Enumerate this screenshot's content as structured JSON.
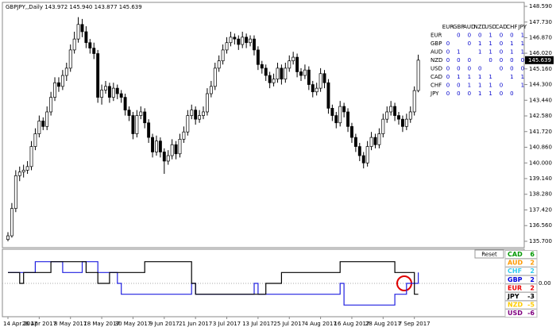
{
  "chart_data": [
    {
      "type": "candlestick",
      "title": "GBPJPY,,Daily 143.972 145.940 143.877 145.639",
      "categories": [
        "14 Apr 2017",
        null,
        null,
        null,
        null,
        null,
        null,
        null,
        "26 Apr 2017",
        null,
        null,
        null,
        null,
        null,
        null,
        null,
        "8 May 2017",
        null,
        null,
        null,
        null,
        null,
        null,
        null,
        "18 May 2017",
        null,
        null,
        null,
        null,
        null,
        null,
        null,
        "30 May 2017",
        null,
        null,
        null,
        null,
        null,
        null,
        null,
        "9 Jun 2017",
        null,
        null,
        null,
        null,
        null,
        null,
        null,
        "21 Jun 2017",
        null,
        null,
        null,
        null,
        null,
        null,
        null,
        "3 Jul 2017",
        null,
        null,
        null,
        null,
        null,
        null,
        null,
        "13 Jul 2017",
        null,
        null,
        null,
        null,
        null,
        null,
        null,
        "25 Jul 2017",
        null,
        null,
        null,
        null,
        null,
        null,
        null,
        "4 Aug 2017",
        null,
        null,
        null,
        null,
        null,
        null,
        null,
        "16 Aug 2017",
        null,
        null,
        null,
        null,
        null,
        null,
        null,
        "28 Aug 2017",
        null,
        null,
        null,
        null,
        null,
        null,
        null,
        "7 Sep 2017",
        null
      ],
      "candles": [
        [
          135.8,
          136.2,
          135.7,
          136.0
        ],
        [
          136.0,
          137.8,
          135.9,
          137.5
        ],
        [
          137.5,
          139.6,
          137.3,
          139.3
        ],
        [
          139.3,
          139.8,
          139.0,
          139.5
        ],
        [
          139.5,
          139.9,
          139.2,
          139.6
        ],
        [
          139.6,
          140.1,
          139.4,
          139.8
        ],
        [
          139.8,
          141.2,
          139.6,
          140.9
        ],
        [
          140.9,
          141.9,
          140.7,
          141.6
        ],
        [
          141.6,
          142.6,
          141.4,
          142.3
        ],
        [
          142.3,
          142.5,
          141.8,
          142.0
        ],
        [
          142.0,
          143.1,
          141.8,
          142.8
        ],
        [
          142.8,
          143.9,
          142.6,
          143.6
        ],
        [
          143.6,
          144.7,
          143.4,
          144.4
        ],
        [
          144.4,
          144.7,
          143.9,
          144.2
        ],
        [
          144.2,
          145.1,
          144.0,
          144.8
        ],
        [
          144.8,
          145.5,
          144.5,
          145.2
        ],
        [
          145.2,
          146.5,
          145.0,
          146.2
        ],
        [
          146.2,
          147.2,
          146.0,
          146.8
        ],
        [
          146.8,
          148.0,
          146.6,
          147.6
        ],
        [
          147.6,
          147.9,
          146.9,
          147.2
        ],
        [
          147.2,
          147.5,
          146.3,
          146.6
        ],
        [
          146.6,
          146.8,
          146.0,
          146.3
        ],
        [
          146.3,
          146.6,
          145.7,
          146.0
        ],
        [
          146.0,
          146.2,
          143.3,
          143.6
        ],
        [
          143.6,
          144.3,
          143.2,
          144.0
        ],
        [
          144.0,
          144.5,
          143.8,
          144.2
        ],
        [
          144.2,
          144.4,
          143.3,
          143.6
        ],
        [
          143.6,
          144.4,
          143.4,
          144.1
        ],
        [
          144.1,
          144.3,
          143.5,
          143.8
        ],
        [
          143.8,
          144.0,
          143.3,
          143.6
        ],
        [
          143.6,
          143.8,
          142.6,
          142.9
        ],
        [
          142.9,
          143.1,
          142.3,
          142.6
        ],
        [
          142.6,
          142.8,
          141.3,
          141.6
        ],
        [
          141.6,
          142.9,
          141.4,
          142.6
        ],
        [
          142.6,
          143.1,
          142.4,
          142.8
        ],
        [
          142.8,
          143.0,
          141.9,
          142.2
        ],
        [
          142.2,
          142.4,
          141.1,
          141.4
        ],
        [
          141.4,
          141.6,
          140.3,
          140.6
        ],
        [
          140.6,
          141.5,
          140.4,
          141.2
        ],
        [
          141.2,
          141.4,
          140.3,
          140.6
        ],
        [
          140.6,
          140.8,
          139.4,
          140.1
        ],
        [
          140.1,
          140.7,
          139.9,
          140.4
        ],
        [
          140.4,
          141.3,
          140.2,
          141.0
        ],
        [
          141.0,
          141.2,
          140.2,
          140.5
        ],
        [
          140.5,
          141.6,
          140.3,
          141.3
        ],
        [
          141.3,
          142.0,
          141.1,
          141.7
        ],
        [
          141.7,
          142.9,
          141.5,
          142.6
        ],
        [
          142.6,
          143.2,
          142.4,
          142.9
        ],
        [
          142.9,
          143.1,
          142.1,
          142.4
        ],
        [
          142.4,
          142.9,
          142.2,
          142.6
        ],
        [
          142.6,
          143.1,
          142.4,
          142.8
        ],
        [
          142.8,
          144.1,
          142.6,
          143.8
        ],
        [
          143.8,
          144.5,
          143.6,
          144.2
        ],
        [
          144.2,
          145.5,
          144.0,
          145.2
        ],
        [
          145.2,
          145.9,
          145.0,
          145.6
        ],
        [
          145.6,
          146.5,
          145.4,
          146.2
        ],
        [
          146.2,
          146.9,
          146.0,
          146.6
        ],
        [
          146.6,
          147.2,
          146.4,
          146.9
        ],
        [
          146.9,
          147.1,
          146.5,
          146.8
        ],
        [
          146.8,
          147.0,
          146.2,
          146.5
        ],
        [
          146.5,
          147.2,
          146.3,
          146.9
        ],
        [
          146.9,
          147.1,
          146.3,
          146.6
        ],
        [
          146.6,
          147.0,
          146.4,
          146.8
        ],
        [
          146.8,
          147.0,
          145.9,
          146.2
        ],
        [
          146.2,
          146.4,
          145.1,
          145.4
        ],
        [
          145.4,
          145.6,
          144.9,
          145.2
        ],
        [
          145.2,
          145.4,
          144.5,
          144.8
        ],
        [
          144.8,
          145.0,
          144.1,
          144.4
        ],
        [
          144.4,
          144.9,
          144.2,
          144.6
        ],
        [
          144.6,
          145.5,
          144.4,
          145.2
        ],
        [
          145.2,
          145.4,
          144.3,
          144.6
        ],
        [
          144.6,
          145.5,
          144.4,
          145.2
        ],
        [
          145.2,
          145.9,
          145.0,
          145.6
        ],
        [
          145.6,
          146.1,
          145.4,
          145.8
        ],
        [
          145.8,
          146.0,
          144.7,
          145.0
        ],
        [
          145.0,
          145.2,
          144.5,
          144.8
        ],
        [
          144.8,
          145.4,
          144.6,
          145.1
        ],
        [
          145.1,
          145.3,
          144.0,
          144.3
        ],
        [
          144.3,
          144.5,
          143.6,
          143.9
        ],
        [
          143.9,
          144.4,
          143.7,
          144.1
        ],
        [
          144.1,
          145.2,
          143.9,
          144.9
        ],
        [
          144.9,
          145.1,
          144.1,
          144.4
        ],
        [
          144.4,
          144.6,
          142.7,
          143.0
        ],
        [
          143.0,
          143.2,
          142.3,
          142.6
        ],
        [
          142.6,
          142.8,
          141.9,
          142.2
        ],
        [
          142.2,
          143.4,
          142.0,
          143.1
        ],
        [
          143.1,
          143.3,
          142.5,
          142.8
        ],
        [
          142.8,
          143.0,
          141.7,
          142.0
        ],
        [
          142.0,
          142.2,
          141.1,
          141.4
        ],
        [
          141.4,
          141.6,
          140.6,
          140.9
        ],
        [
          140.9,
          141.1,
          140.1,
          140.4
        ],
        [
          140.4,
          140.6,
          139.7,
          140.0
        ],
        [
          140.0,
          141.2,
          139.8,
          140.9
        ],
        [
          140.9,
          141.7,
          140.7,
          141.4
        ],
        [
          141.4,
          141.6,
          140.8,
          141.0
        ],
        [
          141.0,
          141.9,
          140.8,
          141.6
        ],
        [
          141.6,
          142.7,
          141.4,
          142.4
        ],
        [
          142.4,
          143.1,
          142.2,
          142.8
        ],
        [
          142.8,
          143.4,
          142.6,
          143.1
        ],
        [
          143.1,
          143.3,
          142.3,
          142.6
        ],
        [
          142.6,
          142.8,
          142.1,
          142.4
        ],
        [
          142.4,
          142.6,
          141.7,
          142.0
        ],
        [
          142.0,
          142.7,
          141.8,
          142.4
        ],
        [
          142.4,
          143.1,
          142.2,
          142.8
        ],
        [
          142.8,
          144.2,
          142.6,
          143.97
        ],
        [
          143.972,
          145.94,
          143.877,
          145.639
        ]
      ],
      "up_color": "#ffffff",
      "down_color": "#000000",
      "ylim": [
        135.35,
        148.81
      ],
      "yticks": [
        {
          "value": 148.59,
          "label": "148.590"
        },
        {
          "value": 147.73,
          "label": "147.730"
        },
        {
          "value": 146.87,
          "label": "146.870"
        },
        {
          "value": 146.02,
          "label": "146.020"
        },
        {
          "value": 145.16,
          "label": "145.160"
        },
        {
          "value": 144.3,
          "label": "144.300"
        },
        {
          "value": 143.44,
          "label": "143.440"
        },
        {
          "value": 142.58,
          "label": "142.580"
        },
        {
          "value": 141.72,
          "label": "141.720"
        },
        {
          "value": 140.86,
          "label": "140.860"
        },
        {
          "value": 140.0,
          "label": "140.000"
        },
        {
          "value": 139.14,
          "label": "139.140"
        },
        {
          "value": 138.28,
          "label": "138.280"
        },
        {
          "value": 137.42,
          "label": "137.420"
        },
        {
          "value": 136.56,
          "label": "136.560"
        },
        {
          "value": 135.7,
          "label": "135.700"
        }
      ],
      "matrix": {
        "columns": [
          "EUR",
          "GBP",
          "AUD",
          "NZD",
          "USD",
          "CAD",
          "CHF",
          "JPY"
        ],
        "rows": [
          {
            "label": "EUR",
            "cells": [
              null,
              0,
              0,
              0,
              1,
              0,
              0,
              1
            ]
          },
          {
            "label": "GBP",
            "cells": [
              0,
              null,
              0,
              1,
              1,
              0,
              1,
              1
            ]
          },
          {
            "label": "AUD",
            "cells": [
              0,
              1,
              null,
              1,
              1,
              0,
              1,
              1
            ]
          },
          {
            "label": "NZD",
            "cells": [
              0,
              0,
              0,
              null,
              0,
              0,
              0,
              0
            ]
          },
          {
            "label": "USD",
            "cells": [
              0,
              0,
              0,
              0,
              null,
              0,
              0,
              0
            ]
          },
          {
            "label": "CAD",
            "cells": [
              0,
              1,
              1,
              1,
              1,
              null,
              1,
              1
            ]
          },
          {
            "label": "CHF",
            "cells": [
              0,
              0,
              1,
              1,
              1,
              0,
              null,
              1
            ]
          },
          {
            "label": "JPY",
            "cells": [
              0,
              0,
              0,
              1,
              1,
              0,
              0,
              null
            ]
          }
        ]
      }
    },
    {
      "type": "line",
      "series": [
        {
          "color": "#2020e0",
          "values": [
            1,
            1,
            1,
            1,
            1,
            1,
            1,
            2,
            2,
            2,
            2,
            2,
            2,
            2,
            1,
            1,
            1,
            1,
            1,
            2,
            2,
            2,
            2,
            1,
            1,
            1,
            1,
            1,
            0,
            -1,
            -1,
            -1,
            -1,
            -1,
            -1,
            -1,
            -1,
            -1,
            -1,
            -1,
            -1,
            -1,
            -1,
            -1,
            -1,
            -1,
            -1,
            0,
            -1,
            -1,
            -1,
            -1,
            -1,
            -1,
            -1,
            -1,
            -1,
            -1,
            -1,
            -1,
            -1,
            -1,
            -1,
            0,
            -1,
            -1,
            -1,
            -1,
            -1,
            -1,
            -1,
            -1,
            -1,
            -1,
            -1,
            -1,
            -1,
            -1,
            -1,
            -1,
            -1,
            -1,
            -1,
            -1,
            -1,
            0,
            -2,
            -2,
            -2,
            -2,
            -2,
            -2,
            -2,
            -2,
            -2,
            -2,
            -2,
            -2,
            -2,
            -1,
            -1,
            -1,
            0,
            0,
            0,
            1
          ]
        },
        {
          "color": "#000000",
          "values": [
            1,
            1,
            1,
            0,
            1,
            1,
            1,
            1,
            1,
            1,
            1,
            2,
            2,
            2,
            2,
            2,
            2,
            2,
            2,
            2,
            1,
            1,
            1,
            0,
            0,
            0,
            1,
            1,
            1,
            1,
            1,
            1,
            1,
            1,
            1,
            2,
            2,
            2,
            2,
            2,
            2,
            2,
            2,
            2,
            2,
            2,
            2,
            0,
            -1,
            -1,
            -1,
            -1,
            -1,
            -1,
            -1,
            -1,
            -1,
            -1,
            -1,
            -1,
            -1,
            -1,
            -1,
            -1,
            -1,
            -1,
            0,
            0,
            0,
            0,
            1,
            1,
            1,
            1,
            1,
            1,
            1,
            1,
            1,
            1,
            1,
            1,
            1,
            1,
            1,
            2,
            2,
            2,
            2,
            2,
            2,
            2,
            2,
            2,
            2,
            2,
            2,
            2,
            2,
            1,
            1,
            1,
            1,
            1,
            -1,
            -1
          ]
        }
      ],
      "ylim": [
        -3,
        3
      ],
      "yticks": [
        {
          "value": 0,
          "label": "0.00"
        }
      ],
      "reset_label": "Reset",
      "strength": [
        {
          "name": "CAD",
          "value": 6,
          "color": "#009900"
        },
        {
          "name": "AUD",
          "value": 2,
          "color": "#ff9900"
        },
        {
          "name": "CHF",
          "value": 2,
          "color": "#33ccee"
        },
        {
          "name": "GBP",
          "value": 2,
          "color": "#0000dd"
        },
        {
          "name": "EUR",
          "value": 2,
          "color": "#ee0000"
        },
        {
          "name": "JPY",
          "value": -3,
          "color": "#000000"
        },
        {
          "name": "NZD",
          "value": -5,
          "color": "#ffcc00"
        },
        {
          "name": "USD",
          "value": -6,
          "color": "#800080"
        }
      ]
    }
  ]
}
